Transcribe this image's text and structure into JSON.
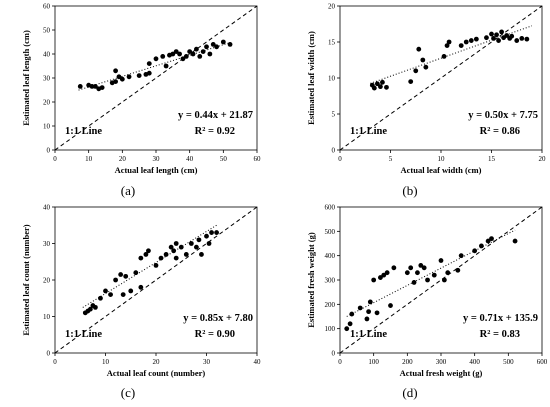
{
  "chart_data": [
    {
      "type": "scatter",
      "panel_label": "(a)",
      "xlabel": "Actual leaf length (cm)",
      "ylabel": "Estimated leaf length (cm)",
      "xlim": [
        0,
        60
      ],
      "ylim": [
        0,
        60
      ],
      "xticks": [
        0,
        10,
        20,
        30,
        40,
        50,
        60
      ],
      "yticks": [
        0,
        10,
        20,
        30,
        40,
        50,
        60
      ],
      "equation": "y = 0.44x + 21.87",
      "r2": "R² = 0.92",
      "line_label": "1:1 Line",
      "fit": {
        "slope": 0.44,
        "intercept": 21.87,
        "x_range": [
          7,
          52
        ]
      },
      "points": [
        [
          7.5,
          26.5
        ],
        [
          10,
          27
        ],
        [
          11,
          26.5
        ],
        [
          12,
          26.5
        ],
        [
          13,
          25.5
        ],
        [
          14,
          26
        ],
        [
          17,
          28
        ],
        [
          18,
          28.5
        ],
        [
          18,
          33
        ],
        [
          19,
          30.5
        ],
        [
          20,
          29.5
        ],
        [
          22,
          30.5
        ],
        [
          25,
          31
        ],
        [
          27,
          31.5
        ],
        [
          28,
          32
        ],
        [
          28,
          36
        ],
        [
          30,
          38
        ],
        [
          32,
          39
        ],
        [
          33,
          35
        ],
        [
          34,
          39.5
        ],
        [
          35,
          40
        ],
        [
          36,
          41
        ],
        [
          37,
          40
        ],
        [
          38,
          38
        ],
        [
          39,
          39
        ],
        [
          40,
          41
        ],
        [
          41,
          40
        ],
        [
          42,
          42
        ],
        [
          43,
          39
        ],
        [
          44,
          41
        ],
        [
          45,
          43
        ],
        [
          46,
          40
        ],
        [
          47,
          44
        ],
        [
          48,
          43
        ],
        [
          50,
          45
        ],
        [
          52,
          44
        ]
      ],
      "grid": false
    },
    {
      "type": "scatter",
      "panel_label": "(b)",
      "xlabel": "Actual leaf width (cm)",
      "ylabel": "Estimated leaf width (cm)",
      "xlim": [
        0,
        20
      ],
      "ylim": [
        0,
        20
      ],
      "xticks": [
        0,
        5,
        10,
        15,
        20
      ],
      "yticks": [
        0,
        5,
        10,
        15,
        20
      ],
      "equation": "y = 0.50x + 7.75",
      "r2": "R² = 0.86",
      "line_label": "1:1 Line",
      "fit": {
        "slope": 0.5,
        "intercept": 7.75,
        "x_range": [
          3,
          19
        ]
      },
      "points": [
        [
          3.2,
          9
        ],
        [
          3.4,
          8.6
        ],
        [
          3.7,
          9.2
        ],
        [
          4.0,
          8.8
        ],
        [
          4.2,
          9.4
        ],
        [
          4.6,
          8.7
        ],
        [
          7.0,
          9.5
        ],
        [
          7.5,
          11
        ],
        [
          7.8,
          14
        ],
        [
          8.2,
          12.5
        ],
        [
          8.5,
          11.5
        ],
        [
          10.3,
          13
        ],
        [
          10.6,
          14.5
        ],
        [
          10.8,
          15
        ],
        [
          12.0,
          14.5
        ],
        [
          12.5,
          15
        ],
        [
          13.0,
          15.2
        ],
        [
          13.5,
          15.4
        ],
        [
          14.5,
          15.6
        ],
        [
          15.0,
          16.1
        ],
        [
          15.2,
          15.5
        ],
        [
          15.5,
          16.0
        ],
        [
          15.7,
          15.2
        ],
        [
          16.0,
          16.4
        ],
        [
          16.2,
          15.6
        ],
        [
          16.5,
          15.9
        ],
        [
          16.8,
          15.5
        ],
        [
          17.0,
          15.8
        ],
        [
          17.5,
          15.2
        ],
        [
          18.0,
          15.5
        ],
        [
          18.5,
          15.4
        ]
      ],
      "grid": false
    },
    {
      "type": "scatter",
      "panel_label": "(c)",
      "xlabel": "Actual leaf count (number)",
      "ylabel": "Estimated leaf count (number)",
      "xlim": [
        0,
        40
      ],
      "ylim": [
        0,
        40
      ],
      "xticks": [
        0,
        10,
        20,
        30,
        40
      ],
      "yticks": [
        0,
        10,
        20,
        30,
        40
      ],
      "equation": "y = 0.85x + 7.80",
      "r2": "R² = 0.90",
      "line_label": "1:1 Line",
      "fit": {
        "slope": 0.85,
        "intercept": 7.8,
        "x_range": [
          5.5,
          32
        ]
      },
      "points": [
        [
          6,
          11
        ],
        [
          6.5,
          11.5
        ],
        [
          7,
          12
        ],
        [
          7.5,
          13
        ],
        [
          8,
          12.5
        ],
        [
          9,
          15
        ],
        [
          10,
          17
        ],
        [
          11,
          16
        ],
        [
          12,
          20
        ],
        [
          13,
          21.5
        ],
        [
          13.5,
          16
        ],
        [
          14,
          21
        ],
        [
          15,
          17
        ],
        [
          16,
          22
        ],
        [
          17,
          18
        ],
        [
          17,
          26
        ],
        [
          18,
          27
        ],
        [
          18.5,
          28
        ],
        [
          20,
          24
        ],
        [
          21,
          26
        ],
        [
          22,
          27
        ],
        [
          23,
          29
        ],
        [
          23.5,
          28
        ],
        [
          24,
          30
        ],
        [
          24,
          26
        ],
        [
          25,
          29
        ],
        [
          26,
          27
        ],
        [
          27,
          30
        ],
        [
          28,
          29
        ],
        [
          28.5,
          31
        ],
        [
          29,
          27
        ],
        [
          30,
          32
        ],
        [
          30.5,
          30
        ],
        [
          31,
          33
        ],
        [
          32,
          33
        ]
      ],
      "grid": false
    },
    {
      "type": "scatter",
      "panel_label": "(d)",
      "xlabel": "Actual fresh weight (g)",
      "ylabel": "Estimated fresh weight (g)",
      "xlim": [
        0,
        600
      ],
      "ylim": [
        0,
        600
      ],
      "xticks": [
        0,
        100,
        200,
        300,
        400,
        500,
        600
      ],
      "yticks": [
        0,
        100,
        200,
        300,
        400,
        500,
        600
      ],
      "equation": "y = 0.71x + 135.9",
      "r2": "R² = 0.83",
      "line_label": "1:1 Line",
      "fit": {
        "slope": 0.71,
        "intercept": 135.9,
        "x_range": [
          20,
          520
        ]
      },
      "points": [
        [
          20,
          100
        ],
        [
          30,
          120
        ],
        [
          35,
          160
        ],
        [
          60,
          185
        ],
        [
          80,
          140
        ],
        [
          85,
          170
        ],
        [
          90,
          210
        ],
        [
          100,
          300
        ],
        [
          110,
          165
        ],
        [
          120,
          310
        ],
        [
          130,
          320
        ],
        [
          140,
          330
        ],
        [
          150,
          195
        ],
        [
          160,
          350
        ],
        [
          200,
          330
        ],
        [
          210,
          350
        ],
        [
          220,
          290
        ],
        [
          230,
          330
        ],
        [
          240,
          360
        ],
        [
          250,
          350
        ],
        [
          260,
          300
        ],
        [
          280,
          320
        ],
        [
          300,
          380
        ],
        [
          310,
          300
        ],
        [
          320,
          330
        ],
        [
          350,
          340
        ],
        [
          360,
          400
        ],
        [
          400,
          420
        ],
        [
          420,
          440
        ],
        [
          440,
          460
        ],
        [
          450,
          470
        ],
        [
          520,
          460
        ]
      ],
      "grid": false
    }
  ]
}
